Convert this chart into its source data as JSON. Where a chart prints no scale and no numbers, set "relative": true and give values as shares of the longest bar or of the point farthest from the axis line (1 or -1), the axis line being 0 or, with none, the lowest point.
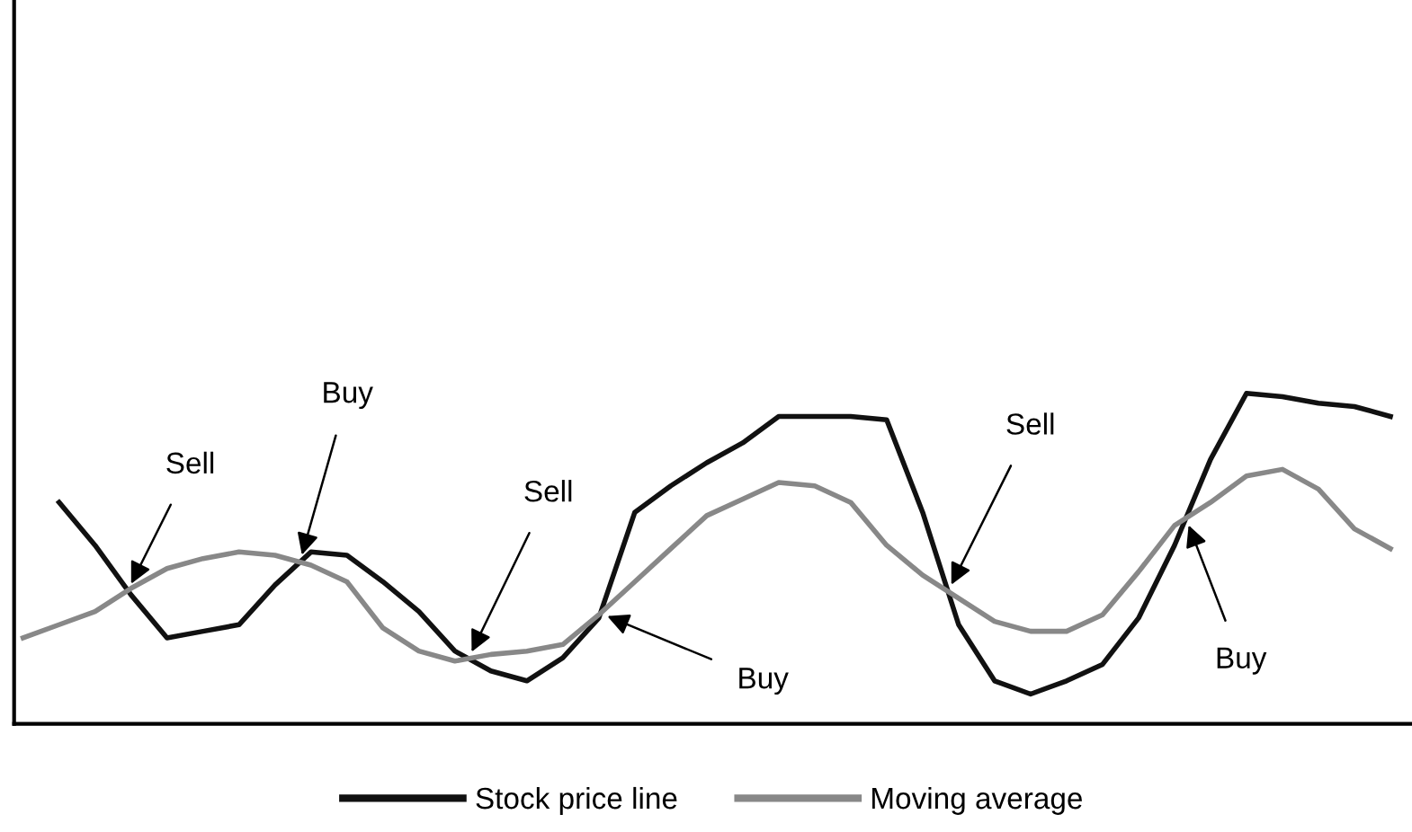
{
  "chart_data": {
    "type": "line",
    "relative": true,
    "legend": "bottom",
    "grid": false,
    "marker": "none",
    "line_style": "solid",
    "categories": [
      null,
      null,
      null,
      null,
      null,
      null,
      null,
      null,
      null,
      null,
      null,
      null,
      null,
      null,
      null,
      null,
      null,
      null,
      null,
      null,
      null,
      null,
      null,
      null,
      null,
      null,
      null,
      null,
      null,
      null,
      null,
      null,
      null,
      null,
      null,
      null,
      null,
      null,
      null
    ],
    "series": [
      {
        "name": "Stock price line",
        "color": "#111111",
        "values": [
          null,
          0.67,
          0.54,
          0.39,
          0.26,
          0.28,
          0.3,
          0.42,
          0.52,
          0.51,
          0.43,
          0.34,
          0.22,
          0.16,
          0.13,
          0.2,
          0.32,
          0.64,
          0.72,
          0.79,
          0.85,
          0.93,
          0.93,
          0.93,
          0.92,
          0.64,
          0.3,
          0.13,
          0.09,
          0.13,
          0.18,
          0.32,
          0.54,
          0.8,
          1.0,
          0.99,
          0.97,
          0.96,
          0.93
        ]
      },
      {
        "name": "Moving average",
        "color": "#888888",
        "values": [
          0.26,
          0.3,
          0.34,
          0.41,
          0.47,
          0.5,
          0.52,
          0.51,
          0.48,
          0.43,
          0.29,
          0.22,
          0.19,
          0.21,
          0.22,
          0.24,
          0.33,
          0.43,
          0.53,
          0.63,
          0.68,
          0.73,
          0.72,
          0.67,
          0.54,
          0.45,
          0.38,
          0.31,
          0.28,
          0.28,
          0.33,
          0.46,
          0.6,
          0.67,
          0.75,
          0.77,
          0.71,
          0.59,
          0.53
        ]
      }
    ],
    "annotations": [
      "Sell",
      "Buy",
      "Sell",
      "Buy",
      "Sell",
      "Buy"
    ]
  }
}
